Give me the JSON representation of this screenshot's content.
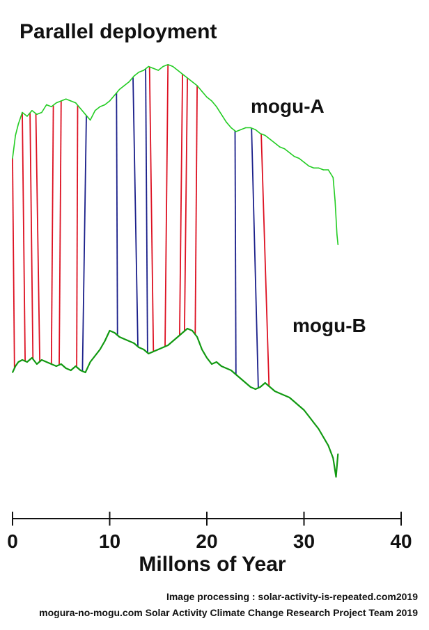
{
  "chart_data": {
    "type": "line",
    "title": "Parallel deployment",
    "xlabel": "Millons of Year",
    "ylabel": "",
    "xlim": [
      0,
      40
    ],
    "xticks": [
      0,
      10,
      20,
      30,
      40
    ],
    "grid": false,
    "legend": "none",
    "series": [
      {
        "name": "mogu-A",
        "color": "#22cc22",
        "x": [
          0,
          0.3,
          0.6,
          1.0,
          1.5,
          2.0,
          2.5,
          3.0,
          3.5,
          4.0,
          4.5,
          5.0,
          5.5,
          6.0,
          6.5,
          7.0,
          7.5,
          8.0,
          8.5,
          9.0,
          9.5,
          10.0,
          10.5,
          11.0,
          11.5,
          12.0,
          12.5,
          13.0,
          13.5,
          14.0,
          14.5,
          15.0,
          15.5,
          16.0,
          16.5,
          17.0,
          17.5,
          18.0,
          18.5,
          19.0,
          19.5,
          20.0,
          20.5,
          21.0,
          21.5,
          22.0,
          22.5,
          23.0,
          23.5,
          24.0,
          24.5,
          25.0,
          25.5,
          26.0,
          26.5,
          27.0,
          27.5,
          28.0,
          28.5,
          29.0,
          29.5,
          30.0,
          30.5,
          31.0,
          31.5,
          32.0,
          32.5,
          33.0,
          33.2,
          33.4,
          33.5
        ],
        "y": [
          0.5,
          0.62,
          0.68,
          0.74,
          0.72,
          0.75,
          0.73,
          0.74,
          0.78,
          0.77,
          0.79,
          0.8,
          0.81,
          0.8,
          0.79,
          0.76,
          0.73,
          0.7,
          0.75,
          0.77,
          0.78,
          0.8,
          0.83,
          0.86,
          0.88,
          0.9,
          0.93,
          0.95,
          0.96,
          0.98,
          0.97,
          0.96,
          0.98,
          0.99,
          0.98,
          0.96,
          0.94,
          0.92,
          0.9,
          0.88,
          0.85,
          0.82,
          0.8,
          0.77,
          0.73,
          0.69,
          0.66,
          0.64,
          0.65,
          0.66,
          0.66,
          0.65,
          0.63,
          0.62,
          0.6,
          0.58,
          0.56,
          0.55,
          0.53,
          0.51,
          0.5,
          0.48,
          0.46,
          0.45,
          0.45,
          0.44,
          0.44,
          0.4,
          0.28,
          0.1,
          0.05
        ]
      },
      {
        "name": "mogu-B",
        "color": "#119911",
        "x": [
          0,
          0.3,
          0.6,
          1.0,
          1.5,
          2.0,
          2.5,
          3.0,
          3.5,
          4.0,
          4.5,
          5.0,
          5.5,
          6.0,
          6.5,
          7.0,
          7.5,
          8.0,
          8.5,
          9.0,
          9.5,
          10.0,
          10.5,
          11.0,
          11.5,
          12.0,
          12.5,
          13.0,
          13.5,
          14.0,
          14.5,
          15.0,
          15.5,
          16.0,
          16.5,
          17.0,
          17.5,
          18.0,
          18.5,
          19.0,
          19.5,
          20.0,
          20.5,
          21.0,
          21.5,
          22.0,
          22.5,
          23.0,
          23.5,
          24.0,
          24.5,
          25.0,
          25.5,
          26.0,
          26.5,
          27.0,
          27.5,
          28.0,
          28.5,
          29.0,
          29.5,
          30.0,
          30.5,
          31.0,
          31.5,
          32.0,
          32.5,
          33.0,
          33.3,
          33.5
        ],
        "y": [
          0.55,
          0.58,
          0.6,
          0.61,
          0.6,
          0.62,
          0.59,
          0.61,
          0.6,
          0.59,
          0.58,
          0.59,
          0.57,
          0.56,
          0.58,
          0.56,
          0.55,
          0.6,
          0.63,
          0.66,
          0.7,
          0.75,
          0.74,
          0.72,
          0.71,
          0.7,
          0.69,
          0.67,
          0.66,
          0.64,
          0.65,
          0.66,
          0.67,
          0.68,
          0.7,
          0.72,
          0.74,
          0.76,
          0.75,
          0.72,
          0.66,
          0.62,
          0.59,
          0.6,
          0.58,
          0.57,
          0.56,
          0.54,
          0.52,
          0.5,
          0.48,
          0.47,
          0.48,
          0.5,
          0.48,
          0.46,
          0.45,
          0.44,
          0.43,
          0.41,
          0.39,
          0.37,
          0.34,
          0.31,
          0.28,
          0.24,
          0.2,
          0.14,
          0.05,
          0.16
        ]
      }
    ],
    "correspondence_lines": {
      "note_colors": {
        "red": "#dd1122",
        "blue": "#1a1f8a"
      },
      "pairs": [
        {
          "a": 0.0,
          "b": 0.2,
          "color": "red"
        },
        {
          "a": 1.0,
          "b": 1.3,
          "color": "red"
        },
        {
          "a": 1.8,
          "b": 2.1,
          "color": "red"
        },
        {
          "a": 2.4,
          "b": 2.8,
          "color": "red"
        },
        {
          "a": 4.2,
          "b": 4.0,
          "color": "red"
        },
        {
          "a": 5.0,
          "b": 4.8,
          "color": "red"
        },
        {
          "a": 6.7,
          "b": 6.6,
          "color": "red"
        },
        {
          "a": 7.6,
          "b": 7.2,
          "color": "blue"
        },
        {
          "a": 10.7,
          "b": 10.8,
          "color": "blue"
        },
        {
          "a": 12.4,
          "b": 12.9,
          "color": "blue"
        },
        {
          "a": 13.7,
          "b": 13.9,
          "color": "blue"
        },
        {
          "a": 14.1,
          "b": 14.5,
          "color": "red"
        },
        {
          "a": 16.0,
          "b": 15.7,
          "color": "red"
        },
        {
          "a": 17.5,
          "b": 17.2,
          "color": "red"
        },
        {
          "a": 18.0,
          "b": 17.7,
          "color": "red"
        },
        {
          "a": 19.0,
          "b": 18.8,
          "color": "red"
        },
        {
          "a": 22.9,
          "b": 23.0,
          "color": "blue"
        },
        {
          "a": 24.6,
          "b": 25.3,
          "color": "blue"
        },
        {
          "a": 25.6,
          "b": 26.4,
          "color": "red"
        }
      ]
    }
  },
  "labels": {
    "title": "Parallel deployment",
    "series_a": "mogu-A",
    "series_b": "mogu-B",
    "xlabel": "Millons of Year",
    "credit_1": "Image processing : solar-activity-is-repeated.com2019",
    "credit_2": "mogura-no-mogu.com Solar Activity Climate Change Research Project Team 2019"
  },
  "xticks_text": [
    "0",
    "10",
    "20",
    "30",
    "40"
  ]
}
